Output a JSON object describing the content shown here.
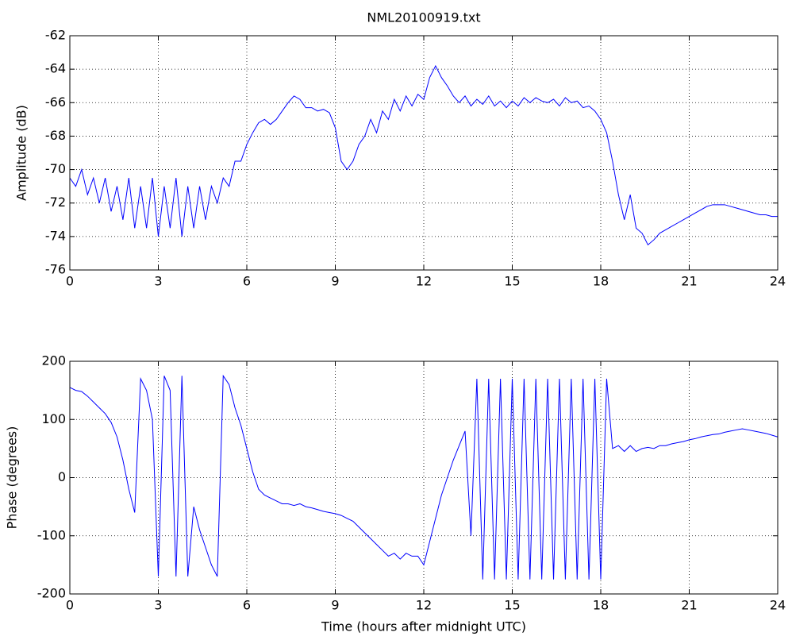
{
  "chart_data": [
    {
      "type": "line",
      "title": "NML20100919.txt",
      "ylabel": "Amplitude (dB)",
      "color": "#0000ff",
      "grid": true,
      "x": [
        0,
        0.2,
        0.4,
        0.6,
        0.8,
        1,
        1.2,
        1.4,
        1.6,
        1.8,
        2,
        2.2,
        2.4,
        2.6,
        2.8,
        3,
        3.2,
        3.4,
        3.6,
        3.8,
        4,
        4.2,
        4.4,
        4.6,
        4.8,
        5,
        5.2,
        5.4,
        5.6,
        5.8,
        6,
        6.2,
        6.4,
        6.6,
        6.8,
        7,
        7.2,
        7.4,
        7.6,
        7.8,
        8,
        8.2,
        8.4,
        8.6,
        8.8,
        9,
        9.2,
        9.4,
        9.6,
        9.8,
        10,
        10.2,
        10.4,
        10.6,
        10.8,
        11,
        11.2,
        11.4,
        11.6,
        11.8,
        12,
        12.2,
        12.4,
        12.6,
        12.8,
        13,
        13.2,
        13.4,
        13.6,
        13.8,
        14,
        14.2,
        14.4,
        14.6,
        14.8,
        15,
        15.2,
        15.4,
        15.6,
        15.8,
        16,
        16.2,
        16.4,
        16.6,
        16.8,
        17,
        17.2,
        17.4,
        17.6,
        17.8,
        18,
        18.2,
        18.4,
        18.6,
        18.8,
        19,
        19.2,
        19.4,
        19.6,
        19.8,
        20,
        20.2,
        20.4,
        20.6,
        20.8,
        21,
        21.2,
        21.4,
        21.6,
        21.8,
        22,
        22.2,
        22.4,
        22.6,
        22.8,
        23,
        23.2,
        23.4,
        23.6,
        23.8,
        24
      ],
      "values": [
        -70.5,
        -71,
        -70,
        -71.5,
        -70.5,
        -72,
        -70.5,
        -72.5,
        -71,
        -73,
        -70.5,
        -73.5,
        -71,
        -73.5,
        -70.5,
        -74,
        -71,
        -73.5,
        -70.5,
        -74,
        -71,
        -73.5,
        -71,
        -73,
        -71,
        -72,
        -70.5,
        -71,
        -69.5,
        -69.5,
        -68.5,
        -67.8,
        -67.2,
        -67,
        -67.3,
        -67,
        -66.5,
        -66,
        -65.6,
        -65.8,
        -66.3,
        -66.3,
        -66.5,
        -66.4,
        -66.6,
        -67.5,
        -69.5,
        -70,
        -69.5,
        -68.5,
        -68,
        -67,
        -67.8,
        -66.5,
        -67,
        -65.8,
        -66.5,
        -65.6,
        -66.2,
        -65.5,
        -65.8,
        -64.5,
        -63.8,
        -64.5,
        -65,
        -65.6,
        -66,
        -65.6,
        -66.2,
        -65.8,
        -66.1,
        -65.6,
        -66.2,
        -65.9,
        -66.3,
        -65.9,
        -66.2,
        -65.7,
        -66,
        -65.7,
        -65.9,
        -66,
        -65.8,
        -66.2,
        -65.7,
        -66,
        -65.9,
        -66.3,
        -66.2,
        -66.5,
        -67,
        -67.8,
        -69.5,
        -71.5,
        -73,
        -71.5,
        -73.5,
        -73.8,
        -74.5,
        -74.2,
        -73.8,
        -73.6,
        -73.4,
        -73.2,
        -73,
        -72.8,
        -72.6,
        -72.4,
        -72.2,
        -72.1,
        -72.1,
        -72.1,
        -72.2,
        -72.3,
        -72.4,
        -72.5,
        -72.6,
        -72.7,
        -72.7,
        -72.8,
        -72.8
      ],
      "xlim": [
        0,
        24
      ],
      "xticks": [
        0,
        3,
        6,
        9,
        12,
        15,
        18,
        21,
        24
      ],
      "ylim": [
        -76,
        -62
      ],
      "yticks": [
        -76,
        -74,
        -72,
        -70,
        -68,
        -66,
        -64,
        -62
      ]
    },
    {
      "type": "line",
      "xlabel": "Time (hours after midnight UTC)",
      "ylabel": "Phase (degrees)",
      "color": "#0000ff",
      "grid": true,
      "x": [
        0,
        0.2,
        0.4,
        0.6,
        0.8,
        1,
        1.2,
        1.4,
        1.6,
        1.8,
        2,
        2.2,
        2.4,
        2.6,
        2.8,
        3,
        3.2,
        3.4,
        3.6,
        3.8,
        4,
        4.2,
        4.4,
        4.6,
        4.8,
        5,
        5.2,
        5.4,
        5.6,
        5.8,
        6,
        6.2,
        6.4,
        6.6,
        6.8,
        7,
        7.2,
        7.4,
        7.6,
        7.8,
        8,
        8.2,
        8.4,
        8.6,
        8.8,
        9,
        9.2,
        9.4,
        9.6,
        9.8,
        10,
        10.2,
        10.4,
        10.6,
        10.8,
        11,
        11.2,
        11.4,
        11.6,
        11.8,
        12,
        12.2,
        12.4,
        12.6,
        12.8,
        13,
        13.2,
        13.4,
        13.6,
        13.8,
        14,
        14.2,
        14.4,
        14.6,
        14.8,
        15,
        15.2,
        15.4,
        15.6,
        15.8,
        16,
        16.2,
        16.4,
        16.6,
        16.8,
        17,
        17.2,
        17.4,
        17.6,
        17.8,
        18,
        18.2,
        18.4,
        18.6,
        18.8,
        19,
        19.2,
        19.4,
        19.6,
        19.8,
        20,
        20.2,
        20.4,
        20.6,
        20.8,
        21,
        21.2,
        21.4,
        21.6,
        21.8,
        22,
        22.2,
        22.4,
        22.6,
        22.8,
        23,
        23.2,
        23.4,
        23.6,
        23.8,
        24
      ],
      "values": [
        155,
        150,
        148,
        140,
        130,
        120,
        110,
        95,
        70,
        30,
        -20,
        -60,
        170,
        150,
        100,
        -170,
        175,
        150,
        -170,
        175,
        -170,
        -50,
        -90,
        -120,
        -150,
        -170,
        175,
        160,
        120,
        90,
        50,
        10,
        -20,
        -30,
        -35,
        -40,
        -45,
        -45,
        -48,
        -45,
        -50,
        -52,
        -55,
        -58,
        -60,
        -62,
        -65,
        -70,
        -75,
        -85,
        -95,
        -105,
        -115,
        -125,
        -135,
        -130,
        -140,
        -130,
        -135,
        -135,
        -150,
        -110,
        -70,
        -30,
        0,
        30,
        55,
        80,
        -100,
        170,
        -175,
        170,
        -175,
        170,
        -175,
        170,
        -175,
        170,
        -175,
        170,
        -175,
        170,
        -175,
        170,
        -175,
        170,
        -175,
        170,
        -175,
        170,
        -175,
        170,
        50,
        55,
        45,
        55,
        45,
        50,
        52,
        50,
        55,
        55,
        58,
        60,
        62,
        65,
        67,
        70,
        72,
        74,
        75,
        78,
        80,
        82,
        84,
        82,
        80,
        78,
        76,
        73,
        70
      ],
      "xlim": [
        0,
        24
      ],
      "xticks": [
        0,
        3,
        6,
        9,
        12,
        15,
        18,
        21,
        24
      ],
      "ylim": [
        -200,
        200
      ],
      "yticks": [
        -200,
        -100,
        0,
        100,
        200
      ]
    }
  ]
}
